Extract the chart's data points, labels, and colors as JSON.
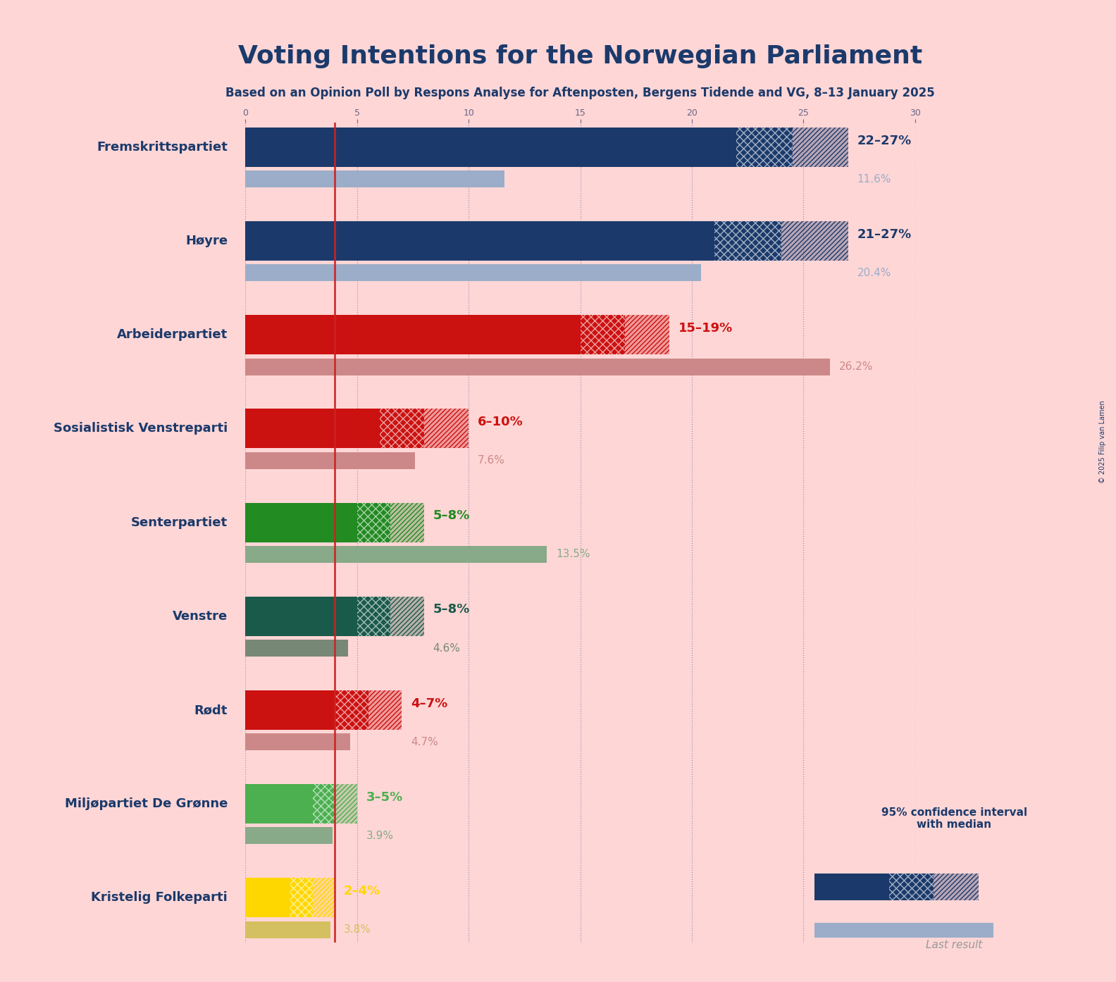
{
  "title": "Voting Intentions for the Norwegian Parliament",
  "subtitle": "Based on an Opinion Poll by Respons Analyse for Aftenposten, Bergens Tidende and VG, 8–13 January 2025",
  "copyright": "© 2025 Filip van Lamen",
  "bg": "#FFD6D6",
  "parties": [
    {
      "name": "Fremskrittspartiet",
      "color": "#1B3A6B",
      "ci_low": 22,
      "ci_mid": 24.5,
      "ci_high": 27,
      "last": 11.6,
      "range_lbl": "22–27%",
      "last_lbl": "11.6%"
    },
    {
      "name": "Høyre",
      "color": "#1B3A6B",
      "ci_low": 21,
      "ci_mid": 24,
      "ci_high": 27,
      "last": 20.4,
      "range_lbl": "21–27%",
      "last_lbl": "20.4%"
    },
    {
      "name": "Arbeiderpartiet",
      "color": "#CC1111",
      "ci_low": 15,
      "ci_mid": 17,
      "ci_high": 19,
      "last": 26.2,
      "range_lbl": "15–19%",
      "last_lbl": "26.2%"
    },
    {
      "name": "Sosialistisk Venstreparti",
      "color": "#CC1111",
      "ci_low": 6,
      "ci_mid": 8,
      "ci_high": 10,
      "last": 7.6,
      "range_lbl": "6–10%",
      "last_lbl": "7.6%"
    },
    {
      "name": "Senterpartiet",
      "color": "#228B22",
      "ci_low": 5,
      "ci_mid": 6.5,
      "ci_high": 8,
      "last": 13.5,
      "range_lbl": "5–8%",
      "last_lbl": "13.5%"
    },
    {
      "name": "Venstre",
      "color": "#1A5A4A",
      "ci_low": 5,
      "ci_mid": 6.5,
      "ci_high": 8,
      "last": 4.6,
      "range_lbl": "5–8%",
      "last_lbl": "4.6%"
    },
    {
      "name": "Rødt",
      "color": "#CC1111",
      "ci_low": 4,
      "ci_mid": 5.5,
      "ci_high": 7,
      "last": 4.7,
      "range_lbl": "4–7%",
      "last_lbl": "4.7%"
    },
    {
      "name": "Miljøpartiet De Grønne",
      "color": "#4CAF50",
      "ci_low": 3,
      "ci_mid": 4,
      "ci_high": 5,
      "last": 3.9,
      "range_lbl": "3–5%",
      "last_lbl": "3.9%"
    },
    {
      "name": "Kristelig Folkeparti",
      "color": "#FFD700",
      "ci_low": 2,
      "ci_mid": 3,
      "ci_high": 4,
      "last": 3.8,
      "range_lbl": "2–4%",
      "last_lbl": "3.8%"
    }
  ],
  "last_colors": {
    "Fremskrittspartiet": "#9BADC8",
    "Høyre": "#9BADC8",
    "Arbeiderpartiet": "#CC8888",
    "Sosialistisk Venstreparti": "#CC8888",
    "Senterpartiet": "#88AA88",
    "Venstre": "#778877",
    "Rødt": "#CC8888",
    "Miljøpartiet De Grønne": "#88AA88",
    "Kristelig Folkeparti": "#D4C060"
  },
  "label_color": "#1B3A6B",
  "range_label_color": "#1B3A6B",
  "last_label_color_blue": "#9BADC8",
  "red_line_x": 4.0,
  "xlim": [
    0,
    30
  ],
  "xticks": [
    0,
    5,
    10,
    15,
    20,
    25,
    30
  ]
}
